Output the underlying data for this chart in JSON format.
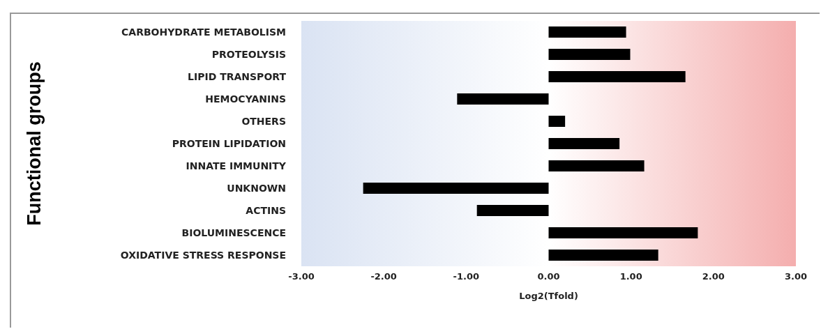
{
  "chart_data": {
    "type": "bar",
    "orientation": "horizontal",
    "xlabel": "Log2(Tfold)",
    "ylabel": "Functional groups",
    "categories": [
      "CARBOHYDRATE METABOLISM",
      "PROTEOLYSIS",
      "LIPID TRANSPORT",
      "HEMOCYANINS",
      "OTHERS",
      "PROTEIN LIPIDATION",
      "INNATE IMMUNITY",
      "UNKNOWN",
      "ACTINS",
      "BIOLUMINESCENCE",
      "OXIDATIVE STRESS RESPONSE"
    ],
    "values": [
      0.94,
      0.99,
      1.66,
      -1.11,
      0.2,
      0.86,
      1.16,
      -2.25,
      -0.87,
      1.81,
      1.33
    ],
    "color": "#000000",
    "xlim": [
      -3,
      3
    ],
    "xticks": [
      {
        "value": -3,
        "label": "-3.00"
      },
      {
        "value": -2,
        "label": "-2.00"
      },
      {
        "value": -1,
        "label": "-1.00"
      },
      {
        "value": 0,
        "label": "0.00"
      },
      {
        "value": 1,
        "label": "1.00"
      },
      {
        "value": 2,
        "label": "2.00"
      },
      {
        "value": 3,
        "label": "3.00"
      }
    ],
    "bands": [
      {
        "axis": "x",
        "from": -3,
        "to": 0,
        "color": "#dae3f3"
      },
      {
        "axis": "x",
        "from": 0,
        "to": 3,
        "color": "#f4aeae"
      }
    ],
    "grid": false
  }
}
